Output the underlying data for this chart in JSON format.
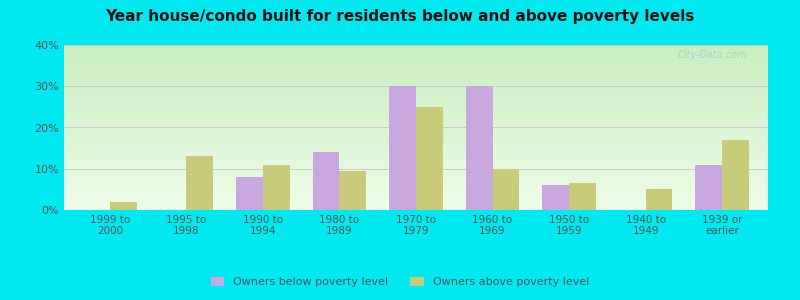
{
  "title": "Year house/condo built for residents below and above poverty levels",
  "categories": [
    "1999 to\n2000",
    "1995 to\n1998",
    "1990 to\n1994",
    "1980 to\n1989",
    "1970 to\n1979",
    "1960 to\n1969",
    "1950 to\n1959",
    "1940 to\n1949",
    "1939 or\nearlier"
  ],
  "below_poverty": [
    0,
    0,
    8,
    14,
    30,
    30,
    6,
    0,
    11
  ],
  "above_poverty": [
    2,
    13,
    11,
    9.5,
    25,
    10,
    6.5,
    5,
    17
  ],
  "below_color": "#c9a8e0",
  "above_color": "#c8cc7a",
  "ylim": [
    0,
    40
  ],
  "yticks": [
    0,
    10,
    20,
    30,
    40
  ],
  "ytick_labels": [
    "0%",
    "10%",
    "20%",
    "30%",
    "40%"
  ],
  "grad_top": "#c8eec0",
  "grad_bottom": "#eefde8",
  "outer_background": "#00e8f0",
  "title_fontsize": 11,
  "title_color": "#111111",
  "legend_below_label": "Owners below poverty level",
  "legend_above_label": "Owners above poverty level",
  "bar_width": 0.35,
  "grid_color": "#cccccc",
  "tick_label_color": "#555555",
  "watermark": "City-Data.com",
  "watermark_color": "#b0c8c8"
}
